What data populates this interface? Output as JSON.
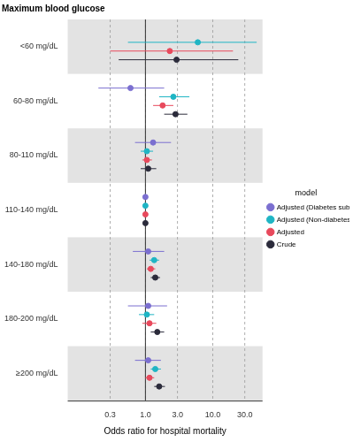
{
  "chart_data": {
    "type": "forest",
    "title": "Maximum blood glucose",
    "x_label": "Odds ratio for hospital mortality",
    "categories": [
      "<60 mg/dL",
      "60-80 mg/dL",
      "80-110 mg/dL",
      "110-140 mg/dL",
      "140-180 mg/dL",
      "180-200 mg/dL",
      "≥200 mg/dL"
    ],
    "log": "x",
    "xlim": [
      0.07,
      55
    ],
    "xticks": [
      0.3,
      {
        "value": 1,
        "label": "1.0"
      },
      {
        "value": 3,
        "label": "3.0"
      },
      {
        "value": 10,
        "label": "10.0"
      },
      {
        "value": 30,
        "label": "30.0"
      }
    ],
    "grid": true,
    "reference_line": 1,
    "legend": "right",
    "legend_title": "model",
    "series": [
      {
        "name": "Adjusted (Diabetes subgroup)",
        "color": "#7b6fd0",
        "values": [
          null,
          0.6,
          1.3,
          1,
          1.1,
          1.1,
          1.1
        ],
        "lower": [
          null,
          0.2,
          0.7,
          1,
          0.65,
          0.55,
          0.7
        ],
        "upper": [
          null,
          1.9,
          2.4,
          1,
          1.9,
          2.1,
          1.7
        ]
      },
      {
        "name": "Adjusted (Non-diabetes subgroup)",
        "color": "#1fb5c4",
        "values": [
          6,
          2.6,
          1.05,
          1,
          1.35,
          1.05,
          1.4
        ],
        "lower": [
          0.55,
          1.6,
          0.85,
          1,
          1.15,
          0.8,
          1.2
        ],
        "upper": [
          45,
          4.5,
          1.3,
          1,
          1.6,
          1.35,
          1.7
        ]
      },
      {
        "name": "Adjusted",
        "color": "#e8495c",
        "values": [
          2.3,
          1.8,
          1.05,
          1,
          1.2,
          1.15,
          1.15
        ],
        "lower": [
          0.3,
          1.3,
          0.9,
          1,
          1.05,
          0.9,
          1.0
        ],
        "upper": [
          20,
          2.6,
          1.25,
          1,
          1.4,
          1.45,
          1.35
        ]
      },
      {
        "name": "Crude",
        "color": "#2b2b3b",
        "values": [
          2.9,
          2.8,
          1.1,
          1,
          1.4,
          1.5,
          1.6
        ],
        "lower": [
          0.4,
          1.9,
          0.85,
          1,
          1.2,
          1.2,
          1.35
        ],
        "upper": [
          24,
          4.2,
          1.45,
          1,
          1.65,
          1.9,
          1.95
        ]
      }
    ]
  }
}
